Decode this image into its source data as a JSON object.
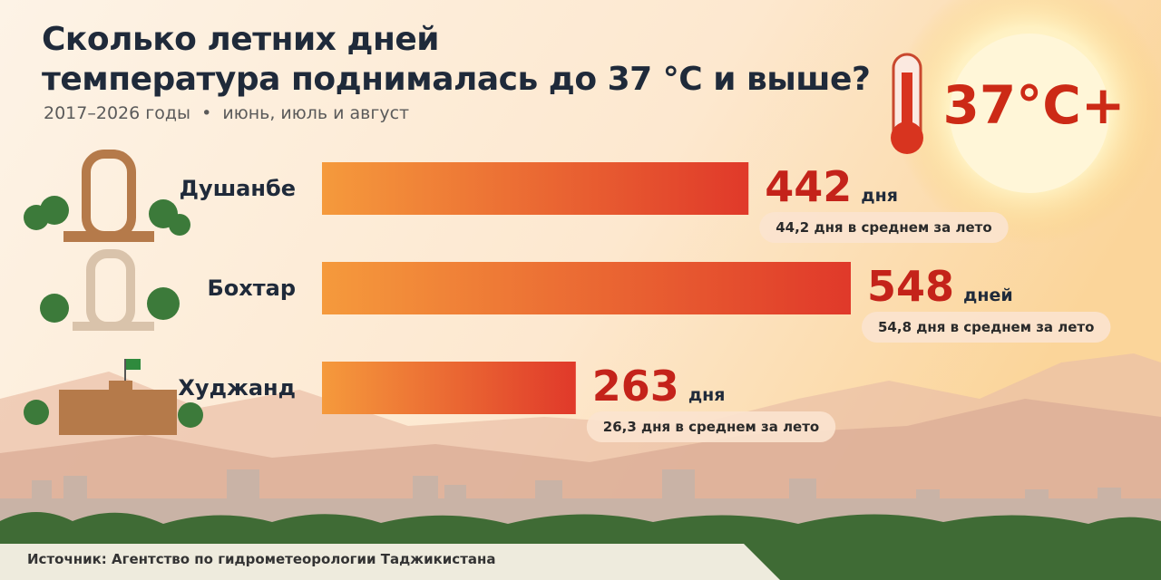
{
  "chart_data": {
    "type": "bar",
    "orientation": "horizontal",
    "title": "Сколько летних дней\nтемпература поднималась до 37 °C и выше?",
    "subtitle": "2017–2026 годы  •  июнь, июль и август",
    "badge": "37°C+",
    "categories": [
      "Душанбе",
      "Бохтар",
      "Худжанд"
    ],
    "values": [
      442,
      548,
      263
    ],
    "units": [
      "дня",
      "дней",
      "дня"
    ],
    "notes": [
      "44,2 дня в среднем за лето",
      "54,8 дня в среднем за лето",
      "26,3 дня в среднем за лето"
    ],
    "color_start": "#f59a3c",
    "color_end": "#e0392a",
    "label_color": "#c4231a",
    "source": "Источник: Агентство по гидрометеорологии Таджикистана"
  }
}
